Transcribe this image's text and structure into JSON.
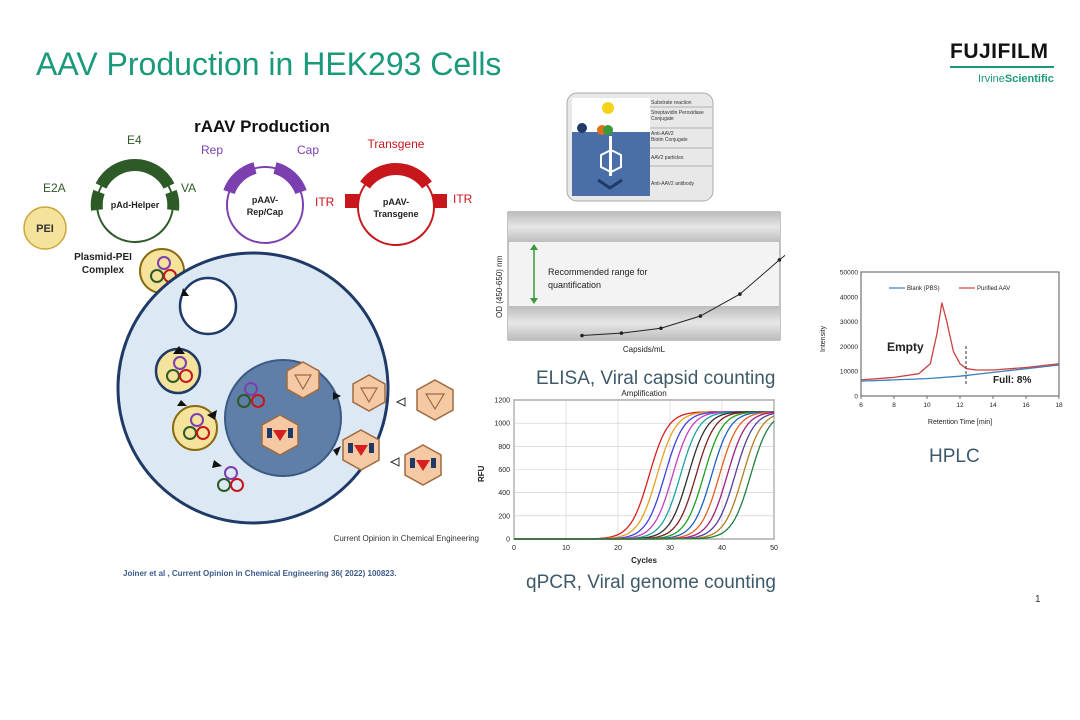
{
  "slide": {
    "title": "AAV Production in HEK293 Cells",
    "page_number": "1",
    "logo": {
      "name": "FUJIFILM",
      "sub_plain": "Irvine",
      "sub_bold": "Scientific"
    },
    "citation": "Joiner et al , Current Opinion in Chemical Engineering 36( 2022) 100823."
  },
  "production": {
    "heading": "rAAV Production",
    "helper": {
      "name": "pAd-Helper",
      "labels": [
        "E4",
        "E2A",
        "VA"
      ]
    },
    "repcap": {
      "name": [
        "pAAV-",
        "Rep/Cap"
      ],
      "rep": "Rep",
      "cap": "Cap"
    },
    "transgene": {
      "name": [
        "pAAV-",
        "Transgene"
      ],
      "label": "Transgene",
      "itr_left": "ITR",
      "itr_right": "ITR"
    },
    "pei": "PEI",
    "complex": [
      "Plasmid-PEI",
      "Complex"
    ],
    "source": "Current Opinion in Chemical Engineering",
    "colors": {
      "helper": "#2d5a27",
      "repcap": "#7b3fb0",
      "transgene": "#c8161d",
      "pei": "#f6e39b",
      "cell": "#dce9f5",
      "nucleus": "#5f7fa8",
      "capsid": "#f5c9a3"
    }
  },
  "elisa": {
    "caption": "ELISA, Viral capsid counting",
    "legend": [
      "Substrate reaction",
      "Streptavidin Peroxidase",
      "Conjugate",
      "Anti-AAV2",
      "Biotin Conjugate",
      "AAV2 particles",
      "Anti-AAV2 antibody"
    ],
    "chart_data": {
      "type": "line",
      "title": "",
      "xlabel": "Capsids/mL",
      "ylabel": "OD (450-650) nm",
      "annotation": "Recommended range for quantification",
      "x": [
        1,
        2,
        3,
        4,
        5,
        6,
        7
      ],
      "values": [
        0.05,
        0.1,
        0.2,
        0.45,
        0.9,
        1.6,
        2.25
      ],
      "ylim": [
        0,
        2.5
      ]
    }
  },
  "qpcr": {
    "caption": "qPCR, Viral genome counting",
    "chart_data": {
      "type": "line",
      "title": "Amplification",
      "xlabel": "Cycles",
      "ylabel": "RFU",
      "xlim": [
        0,
        50
      ],
      "ylim": [
        0,
        1200
      ],
      "xticks": [
        "0",
        "10",
        "20",
        "30",
        "40",
        "50"
      ],
      "yticks": [
        "0",
        "200",
        "400",
        "600",
        "800",
        "1000",
        "1200"
      ],
      "plateau": 1100,
      "series_midpoints": [
        26,
        27.5,
        29,
        30.5,
        32,
        33.5,
        35,
        36.5,
        38,
        39.5,
        41,
        42.5,
        44,
        45.5
      ],
      "series_colors": [
        "#d62020",
        "#e8a020",
        "#4040e0",
        "#c040c0",
        "#20a0a0",
        "#303030",
        "#802020",
        "#20a020",
        "#2060c0",
        "#e06020",
        "#a02080",
        "#5040a0",
        "#b08020",
        "#208040"
      ]
    }
  },
  "hplc": {
    "caption": "HPLC",
    "chart_data": {
      "type": "line",
      "title": "",
      "xlabel": "Retention Time [min]",
      "ylabel": "Intensity",
      "xlim": [
        6,
        18
      ],
      "ylim": [
        0,
        50000
      ],
      "xticks": [
        "6",
        "8",
        "10",
        "12",
        "14",
        "16",
        "18"
      ],
      "yticks": [
        "0",
        "10000",
        "20000",
        "30000",
        "40000",
        "50000"
      ],
      "series": [
        {
          "name": "Blank (PBS)",
          "color": "#3a7fc0",
          "x": [
            6,
            8,
            10,
            12,
            14,
            16,
            18
          ],
          "values": [
            6000,
            6500,
            7000,
            8000,
            9500,
            11000,
            12500
          ]
        },
        {
          "name": "Purified AAV",
          "color": "#d04040",
          "x": [
            6,
            8,
            9.5,
            10.2,
            10.6,
            10.9,
            11.2,
            11.6,
            12,
            12.4,
            13,
            14,
            16,
            18
          ],
          "values": [
            6500,
            7500,
            9000,
            13000,
            25000,
            37500,
            30000,
            18000,
            13000,
            11000,
            10500,
            10500,
            11500,
            13000
          ]
        }
      ],
      "annotations": [
        "Empty",
        "Full: 8%"
      ]
    }
  }
}
